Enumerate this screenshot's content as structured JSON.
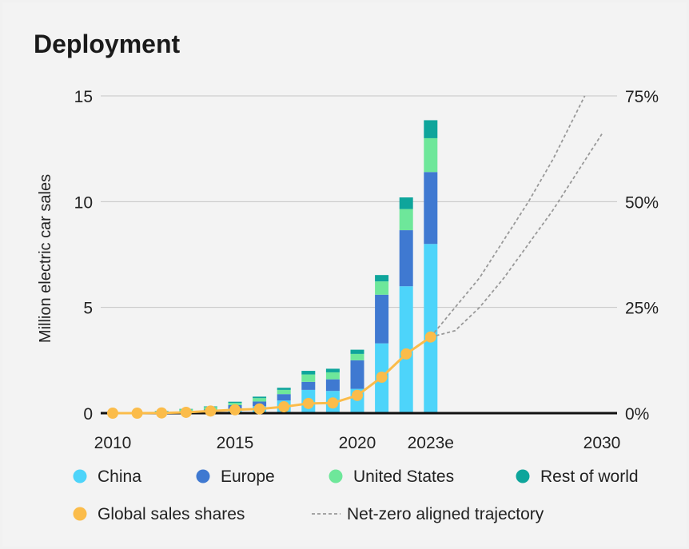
{
  "chart_data": {
    "type": "bar",
    "title": "Deployment",
    "ylabel": "Million electric car sales",
    "ylim": [
      0,
      15
    ],
    "y2lim": [
      0,
      75
    ],
    "y_ticks": [
      "0",
      "5",
      "10",
      "15"
    ],
    "y2_ticks": [
      "0%",
      "25%",
      "50%",
      "75%"
    ],
    "x_ticks": [
      {
        "year": 2010,
        "label": "2010"
      },
      {
        "year": 2015,
        "label": "2015"
      },
      {
        "year": 2020,
        "label": "2020"
      },
      {
        "year": 2023,
        "label": "2023e"
      },
      {
        "year": 2030,
        "label": "2030"
      }
    ],
    "years": [
      2010,
      2011,
      2012,
      2013,
      2014,
      2015,
      2016,
      2017,
      2018,
      2019,
      2020,
      2021,
      2022,
      2023
    ],
    "stacked": true,
    "series": [
      {
        "name": "China",
        "color": "#4dd4fa",
        "values": [
          0.0,
          0.0,
          0.01,
          0.02,
          0.07,
          0.2,
          0.33,
          0.6,
          1.1,
          1.05,
          1.15,
          3.3,
          6.0,
          8.0
        ]
      },
      {
        "name": "Europe",
        "color": "#3f79d1",
        "values": [
          0.0,
          0.01,
          0.03,
          0.07,
          0.1,
          0.18,
          0.22,
          0.3,
          0.38,
          0.55,
          1.35,
          2.3,
          2.65,
          3.4
        ]
      },
      {
        "name": "United States",
        "color": "#6ee79a",
        "values": [
          0.0,
          0.02,
          0.05,
          0.1,
          0.12,
          0.11,
          0.16,
          0.2,
          0.35,
          0.33,
          0.3,
          0.63,
          1.0,
          1.6
        ]
      },
      {
        "name": "Rest of world",
        "color": "#0ea59b",
        "values": [
          0.0,
          0.0,
          0.01,
          0.01,
          0.03,
          0.05,
          0.07,
          0.1,
          0.17,
          0.17,
          0.2,
          0.3,
          0.55,
          0.85
        ]
      }
    ],
    "line_series": {
      "name": "Global sales shares",
      "color": "#fbbc4a",
      "years": [
        2010,
        2011,
        2012,
        2013,
        2014,
        2015,
        2016,
        2017,
        2018,
        2019,
        2020,
        2021,
        2022,
        2023
      ],
      "values": [
        0,
        0,
        0.05,
        0.2,
        0.5,
        0.8,
        1.0,
        1.5,
        2.3,
        2.4,
        4.2,
        8.5,
        14,
        18
      ]
    },
    "trajectory": {
      "name": "Net-zero aligned trajectory",
      "color": "#999999",
      "upper": {
        "years": [
          2023,
          2024,
          2025,
          2026,
          2027,
          2028,
          2029.3
        ],
        "values": [
          18,
          25,
          32,
          41,
          50,
          60,
          75
        ]
      },
      "lower": {
        "years": [
          2023,
          2024,
          2025,
          2026,
          2027,
          2028,
          2029,
          2030
        ],
        "values": [
          18,
          19.5,
          25,
          32,
          40,
          48,
          57,
          66
        ]
      }
    },
    "legend": [
      {
        "label": "China",
        "marker": "dot",
        "color": "#4dd4fa"
      },
      {
        "label": "Europe",
        "marker": "dot",
        "color": "#3f79d1"
      },
      {
        "label": "United States",
        "marker": "dot",
        "color": "#6ee79a"
      },
      {
        "label": "Rest of world",
        "marker": "dot",
        "color": "#0ea59b"
      },
      {
        "label": "Global sales shares",
        "marker": "dot",
        "color": "#fbbc4a"
      },
      {
        "label": "Net-zero aligned trajectory",
        "marker": "dash",
        "color": "#999999"
      }
    ],
    "grid": true,
    "legend_position": "bottom"
  }
}
